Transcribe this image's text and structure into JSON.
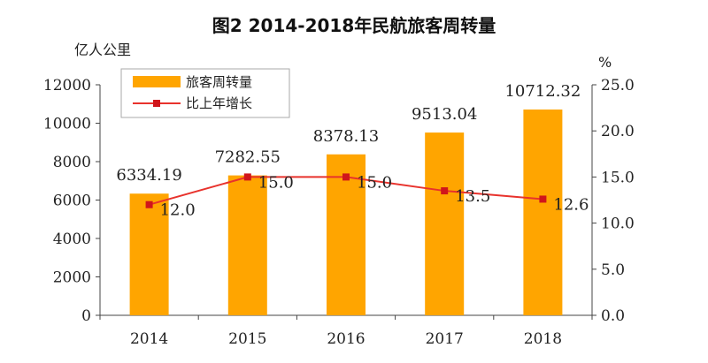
{
  "chart_data": {
    "type": "bar",
    "title": "图2 2014-2018年民航旅客周转量",
    "categories": [
      "2014",
      "2015",
      "2016",
      "2017",
      "2018"
    ],
    "series": [
      {
        "name": "旅客周转量",
        "kind": "bar",
        "axis": "left",
        "color": "#FFA500",
        "values": [
          6334.19,
          7282.55,
          8378.13,
          9513.04,
          10712.32
        ],
        "labels": [
          "6334.19",
          "7282.55",
          "8378.13",
          "9513.04",
          "10712.32"
        ]
      },
      {
        "name": "比上年增长",
        "kind": "line",
        "axis": "right",
        "color": "#E8322C",
        "values": [
          12.0,
          15.0,
          15.0,
          13.5,
          12.6
        ],
        "labels": [
          "12.0",
          "15.0",
          "15.0",
          "13.5",
          "12.6"
        ]
      }
    ],
    "ylabel_left": "亿人公里",
    "ylabel_right": "%",
    "ylim_left": [
      0,
      12000
    ],
    "yticks_left": [
      "0",
      "2000",
      "4000",
      "6000",
      "8000",
      "10000",
      "12000"
    ],
    "ylim_right": [
      0,
      25
    ],
    "yticks_right": [
      "0.0",
      "5.0",
      "10.0",
      "15.0",
      "20.0",
      "25.0"
    ],
    "grid": false,
    "legend_position": "top-left"
  }
}
